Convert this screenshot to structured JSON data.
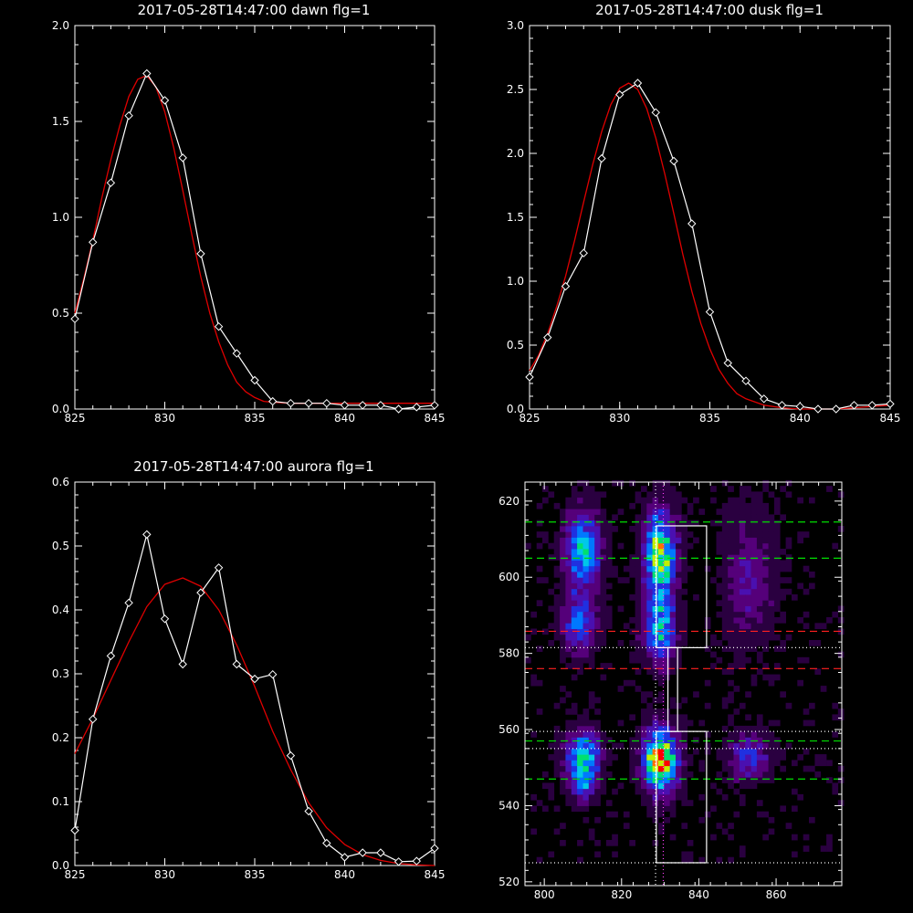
{
  "chart_data": [
    {
      "id": "dawn",
      "type": "line",
      "title": "2017-05-28T14:47:00 dawn flg=1",
      "xlim": [
        825,
        845
      ],
      "ylim": [
        0,
        2.0
      ],
      "xticks": [
        "825",
        "830",
        "835",
        "840",
        "845"
      ],
      "yticks": [
        "0.0",
        "0.5",
        "1.0",
        "1.5",
        "2.0"
      ],
      "xtick_values": [
        825,
        830,
        835,
        840,
        845
      ],
      "ytick_values": [
        0,
        0.5,
        1.0,
        1.5,
        2.0
      ],
      "series": [
        {
          "kind": "observed",
          "color": "#ffffff",
          "marker": "diamond",
          "x": [
            825,
            826,
            827,
            828,
            829,
            830,
            831,
            832,
            833,
            834,
            835,
            836,
            837,
            838,
            839,
            840,
            841,
            842,
            843,
            844,
            845
          ],
          "y": [
            0.47,
            0.87,
            1.18,
            1.53,
            1.75,
            1.61,
            1.31,
            0.81,
            0.43,
            0.29,
            0.15,
            0.04,
            0.03,
            0.03,
            0.03,
            0.02,
            0.02,
            0.02,
            0.0,
            0.01,
            0.02
          ]
        },
        {
          "kind": "fit",
          "color": "#e00000",
          "x": [
            825,
            825.5,
            826,
            826.5,
            827,
            827.5,
            828,
            828.5,
            829,
            829.5,
            830,
            830.5,
            831,
            831.5,
            832,
            832.5,
            833,
            833.5,
            834,
            834.5,
            835,
            835.5,
            836,
            837,
            838,
            839,
            840,
            841,
            842,
            843,
            844,
            845
          ],
          "y": [
            0.5,
            0.68,
            0.88,
            1.1,
            1.3,
            1.48,
            1.63,
            1.72,
            1.74,
            1.68,
            1.55,
            1.36,
            1.14,
            0.91,
            0.69,
            0.5,
            0.35,
            0.23,
            0.14,
            0.09,
            0.06,
            0.04,
            0.035,
            0.03,
            0.03,
            0.03,
            0.03,
            0.03,
            0.03,
            0.03,
            0.03,
            0.03
          ]
        }
      ]
    },
    {
      "id": "dusk",
      "type": "line",
      "title": "2017-05-28T14:47:00 dusk flg=1",
      "xlim": [
        825,
        845
      ],
      "ylim": [
        0,
        3.0
      ],
      "xticks": [
        "825",
        "830",
        "835",
        "840",
        "845"
      ],
      "yticks": [
        "0.0",
        "0.5",
        "1.0",
        "1.5",
        "2.0",
        "2.5",
        "3.0"
      ],
      "xtick_values": [
        825,
        830,
        835,
        840,
        845
      ],
      "ytick_values": [
        0,
        0.5,
        1.0,
        1.5,
        2.0,
        2.5,
        3.0
      ],
      "series": [
        {
          "kind": "observed",
          "color": "#ffffff",
          "marker": "diamond",
          "x": [
            825,
            826,
            827,
            828,
            829,
            830,
            831,
            832,
            833,
            834,
            835,
            836,
            837,
            838,
            839,
            840,
            841,
            842,
            843,
            844,
            845
          ],
          "y": [
            0.25,
            0.56,
            0.96,
            1.22,
            1.96,
            2.46,
            2.55,
            2.32,
            1.94,
            1.45,
            0.76,
            0.36,
            0.22,
            0.08,
            0.03,
            0.02,
            0.0,
            0.0,
            0.03,
            0.03,
            0.04
          ]
        },
        {
          "kind": "fit",
          "color": "#e00000",
          "x": [
            825,
            825.5,
            826,
            826.5,
            827,
            827.5,
            828,
            828.5,
            829,
            829.5,
            830,
            830.5,
            831,
            831.5,
            832,
            832.5,
            833,
            833.5,
            834,
            834.5,
            835,
            835.5,
            836,
            836.5,
            837,
            838,
            839,
            840,
            841,
            842,
            843,
            844,
            845
          ],
          "y": [
            0.3,
            0.42,
            0.59,
            0.8,
            1.04,
            1.32,
            1.62,
            1.91,
            2.17,
            2.38,
            2.51,
            2.55,
            2.5,
            2.35,
            2.12,
            1.84,
            1.53,
            1.21,
            0.92,
            0.67,
            0.47,
            0.31,
            0.2,
            0.12,
            0.08,
            0.03,
            0.01,
            0.0,
            0.0,
            0.0,
            0.01,
            0.02,
            0.03
          ]
        }
      ]
    },
    {
      "id": "aurora",
      "type": "line",
      "title": "2017-05-28T14:47:00 aurora flg=1",
      "xlim": [
        825,
        845
      ],
      "ylim": [
        0,
        0.6
      ],
      "xticks": [
        "825",
        "830",
        "835",
        "840",
        "845"
      ],
      "yticks": [
        "0.0",
        "0.1",
        "0.2",
        "0.3",
        "0.4",
        "0.5",
        "0.6"
      ],
      "xtick_values": [
        825,
        830,
        835,
        840,
        845
      ],
      "ytick_values": [
        0,
        0.1,
        0.2,
        0.3,
        0.4,
        0.5,
        0.6
      ],
      "series": [
        {
          "kind": "observed",
          "color": "#ffffff",
          "marker": "diamond",
          "x": [
            825,
            826,
            827,
            828,
            829,
            830,
            831,
            832,
            833,
            834,
            835,
            836,
            837,
            838,
            839,
            840,
            841,
            842,
            843,
            844,
            845
          ],
          "y": [
            0.055,
            0.229,
            0.328,
            0.411,
            0.518,
            0.386,
            0.315,
            0.427,
            0.466,
            0.315,
            0.292,
            0.299,
            0.172,
            0.085,
            0.035,
            0.013,
            0.02,
            0.02,
            0.006,
            0.007,
            0.027
          ]
        },
        {
          "kind": "fit",
          "color": "#e00000",
          "x": [
            825,
            826,
            827,
            828,
            829,
            830,
            831,
            832,
            833,
            834,
            835,
            836,
            837,
            838,
            839,
            840,
            841,
            842,
            843,
            844,
            845
          ],
          "y": [
            0.175,
            0.23,
            0.29,
            0.35,
            0.405,
            0.44,
            0.45,
            0.437,
            0.4,
            0.345,
            0.28,
            0.21,
            0.15,
            0.098,
            0.059,
            0.033,
            0.017,
            0.008,
            0.003,
            0.001,
            0.0
          ]
        }
      ]
    },
    {
      "id": "spectrogram",
      "type": "heatmap",
      "title": "",
      "xlim": [
        795,
        877
      ],
      "ylim": [
        519,
        625
      ],
      "xticks": [
        "800",
        "820",
        "840",
        "860"
      ],
      "yticks": [
        "520",
        "540",
        "560",
        "580",
        "600",
        "620"
      ],
      "xtick_values": [
        800,
        820,
        840,
        860
      ],
      "ytick_values": [
        520,
        540,
        560,
        580,
        600,
        620
      ],
      "colorscale": [
        "#000000",
        "#2a0040",
        "#55007a",
        "#4a10b0",
        "#2030e0",
        "#0078ff",
        "#00c8e8",
        "#00e070",
        "#c0f000",
        "#ff7000",
        "#ff0000"
      ],
      "blobs": [
        {
          "x": 810,
          "y": 607,
          "sx": 3.2,
          "sy": 7,
          "amp": 0.58
        },
        {
          "x": 809,
          "y": 588,
          "sx": 3.0,
          "sy": 5,
          "amp": 0.42
        },
        {
          "x": 830,
          "y": 606,
          "sx": 2.8,
          "sy": 8,
          "amp": 0.78
        },
        {
          "x": 830,
          "y": 586,
          "sx": 2.8,
          "sy": 6,
          "amp": 0.55
        },
        {
          "x": 853,
          "y": 600,
          "sx": 4.5,
          "sy": 12,
          "amp": 0.22
        },
        {
          "x": 810,
          "y": 553,
          "sx": 3.2,
          "sy": 4.5,
          "amp": 0.62
        },
        {
          "x": 830,
          "y": 552,
          "sx": 3.0,
          "sy": 5.5,
          "amp": 1.0
        },
        {
          "x": 853,
          "y": 553,
          "sx": 3.5,
          "sy": 4,
          "amp": 0.38
        },
        {
          "x": 810,
          "y": 545,
          "sx": 2.5,
          "sy": 3,
          "amp": 0.3
        }
      ],
      "vlines": [
        {
          "x": 828.8,
          "color": "#ffffff",
          "style": "dotted"
        },
        {
          "x": 830.8,
          "color": "#ff40ff",
          "style": "dotted"
        }
      ],
      "hlines": [
        {
          "y": 614.5,
          "color": "#00e000",
          "style": "dashed"
        },
        {
          "y": 605,
          "color": "#00e000",
          "style": "dashed"
        },
        {
          "y": 585.8,
          "color": "#ff2020",
          "style": "dashed"
        },
        {
          "y": 581.5,
          "color": "#ffffff",
          "style": "dotted"
        },
        {
          "y": 576,
          "color": "#ff2020",
          "style": "dashed"
        },
        {
          "y": 559.5,
          "color": "#ffffff",
          "style": "dotted"
        },
        {
          "y": 557,
          "color": "#00e000",
          "style": "dashed"
        },
        {
          "y": 555,
          "color": "#ffffff",
          "style": "dotted"
        },
        {
          "y": 547,
          "color": "#00e000",
          "style": "dashed"
        },
        {
          "y": 525,
          "color": "#ffffff",
          "style": "dotted"
        }
      ],
      "boxes": [
        {
          "x0": 829,
          "x1": 842,
          "y0": 581.5,
          "y1": 613.5,
          "color": "#ffffff"
        },
        {
          "x0": 832,
          "x1": 834.5,
          "y0": 559.5,
          "y1": 581.5,
          "color": "#ffffff"
        },
        {
          "x0": 829,
          "x1": 842,
          "y0": 525,
          "y1": 559.5,
          "color": "#ffffff"
        }
      ]
    }
  ]
}
